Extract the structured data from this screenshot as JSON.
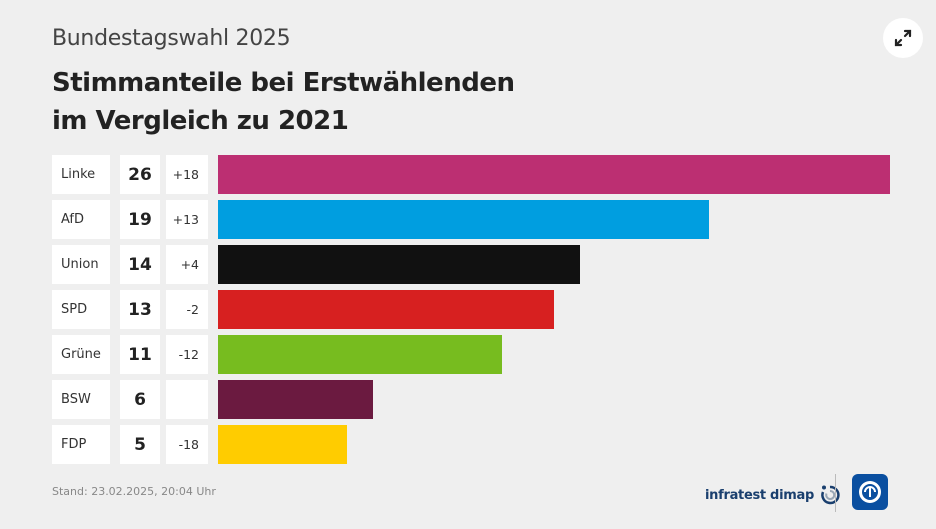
{
  "header": {
    "subtitle": "Bundestagswahl 2025",
    "title_line1": "Stimmanteile bei Erstwählenden",
    "title_line2": "im Vergleich zu 2021"
  },
  "chart_data": {
    "type": "bar",
    "orientation": "horizontal",
    "categories": [
      "Linke",
      "AfD",
      "Union",
      "SPD",
      "Grüne",
      "BSW",
      "FDP"
    ],
    "values": [
      26,
      19,
      14,
      13,
      11,
      6,
      5
    ],
    "value_labels": [
      "26",
      "19",
      "14",
      "13",
      "11",
      "6",
      "5"
    ],
    "changes": [
      "+18",
      "+13",
      "+4",
      "-2",
      "-12",
      "",
      "-18"
    ],
    "colors": [
      "#bc2f72",
      "#009ee0",
      "#111111",
      "#d72020",
      "#77bc1f",
      "#6b1a40",
      "#ffcc00"
    ],
    "xlim": [
      0,
      26
    ]
  },
  "footer": {
    "date": "Stand:  23.02.2025, 20:04 Uhr",
    "source": "infratest dimap"
  },
  "icons": {
    "expand": "expand-arrows-icon",
    "infratest": "infratest-logo-icon",
    "ard": "tagesschau-logo-icon"
  }
}
